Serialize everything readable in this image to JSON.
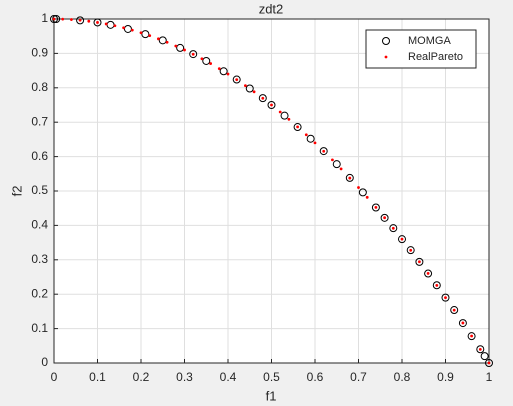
{
  "chart_data": {
    "type": "scatter",
    "title": "zdt2",
    "x_label": "f1",
    "y_label": "f2",
    "xlim": [
      0,
      1
    ],
    "ylim": [
      0,
      1
    ],
    "xticks": [
      0,
      0.1,
      0.2,
      0.3,
      0.4,
      0.5,
      0.6,
      0.7,
      0.8,
      0.9,
      1
    ],
    "yticks": [
      0,
      0.1,
      0.2,
      0.3,
      0.4,
      0.5,
      0.6,
      0.7,
      0.8,
      0.9,
      1
    ],
    "grid": true,
    "legend": "northeast",
    "series": [
      {
        "name": "MOMGA",
        "color": "#000000",
        "marker": "circle",
        "x": [
          0,
          0.005,
          0.06,
          0.1,
          0.13,
          0.17,
          0.21,
          0.25,
          0.29,
          0.32,
          0.35,
          0.39,
          0.42,
          0.45,
          0.48,
          0.5,
          0.53,
          0.56,
          0.59,
          0.62,
          0.65,
          0.68,
          0.71,
          0.74,
          0.76,
          0.78,
          0.8,
          0.82,
          0.84,
          0.86,
          0.88,
          0.9,
          0.92,
          0.94,
          0.96,
          0.98,
          0.99,
          1
        ],
        "values": [
          1,
          1,
          0.996,
          0.99,
          0.983,
          0.971,
          0.956,
          0.938,
          0.916,
          0.898,
          0.878,
          0.848,
          0.824,
          0.798,
          0.77,
          0.75,
          0.719,
          0.686,
          0.652,
          0.616,
          0.578,
          0.538,
          0.496,
          0.452,
          0.422,
          0.392,
          0.36,
          0.328,
          0.294,
          0.26,
          0.226,
          0.19,
          0.154,
          0.116,
          0.078,
          0.04,
          0.02,
          0
        ]
      },
      {
        "name": "RealPareto",
        "color": "#ff0000",
        "marker": "dot",
        "x": [
          0,
          0.02,
          0.04,
          0.06,
          0.08,
          0.1,
          0.12,
          0.14,
          0.16,
          0.18,
          0.2,
          0.22,
          0.24,
          0.26,
          0.28,
          0.3,
          0.32,
          0.34,
          0.36,
          0.38,
          0.4,
          0.42,
          0.44,
          0.46,
          0.48,
          0.5,
          0.52,
          0.54,
          0.56,
          0.58,
          0.6,
          0.62,
          0.64,
          0.66,
          0.68,
          0.7,
          0.72,
          0.74,
          0.76,
          0.78,
          0.8,
          0.82,
          0.84,
          0.86,
          0.88,
          0.9,
          0.92,
          0.94,
          0.96,
          0.98,
          1
        ],
        "values": [
          1,
          0.9996,
          0.9984,
          0.9964,
          0.9936,
          0.99,
          0.9856,
          0.9804,
          0.9744,
          0.9676,
          0.96,
          0.9516,
          0.9424,
          0.9324,
          0.9216,
          0.91,
          0.8976,
          0.8844,
          0.8704,
          0.8556,
          0.84,
          0.8236,
          0.8064,
          0.7884,
          0.7696,
          0.75,
          0.7296,
          0.7084,
          0.6864,
          0.6636,
          0.64,
          0.6156,
          0.5904,
          0.5644,
          0.5376,
          0.51,
          0.4816,
          0.4524,
          0.4224,
          0.3916,
          0.36,
          0.3276,
          0.2944,
          0.2604,
          0.2256,
          0.19,
          0.1536,
          0.1164,
          0.0784,
          0.0396,
          0
        ]
      }
    ]
  }
}
